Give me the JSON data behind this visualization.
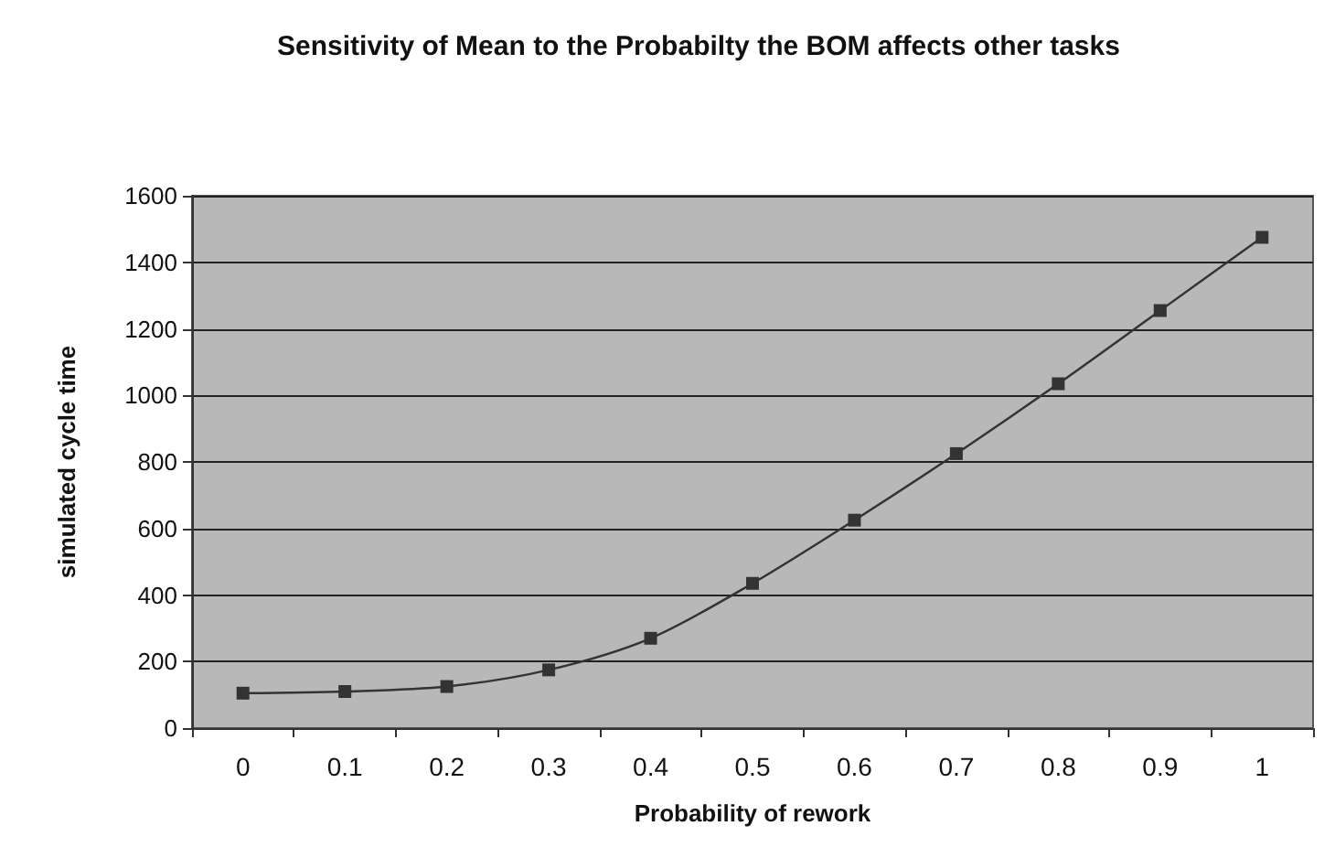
{
  "chart_data": {
    "type": "line",
    "title": "Sensitivity of Mean to the Probabilty the BOM affects other tasks",
    "xlabel": "Probability of rework",
    "ylabel": "simulated cycle time",
    "categories": [
      "0",
      "0.1",
      "0.2",
      "0.3",
      "0.4",
      "0.5",
      "0.6",
      "0.7",
      "0.8",
      "0.9",
      "1"
    ],
    "series": [
      {
        "color": "#333333",
        "values": [
          105,
          110,
          125,
          175,
          270,
          435,
          625,
          825,
          1035,
          1255,
          1475
        ]
      }
    ],
    "ylim": [
      0,
      1600
    ],
    "yticks": [
      0,
      200,
      400,
      600,
      800,
      1000,
      1200,
      1400,
      1600
    ],
    "grid": "y",
    "marker": "square",
    "line_style": "solid"
  }
}
